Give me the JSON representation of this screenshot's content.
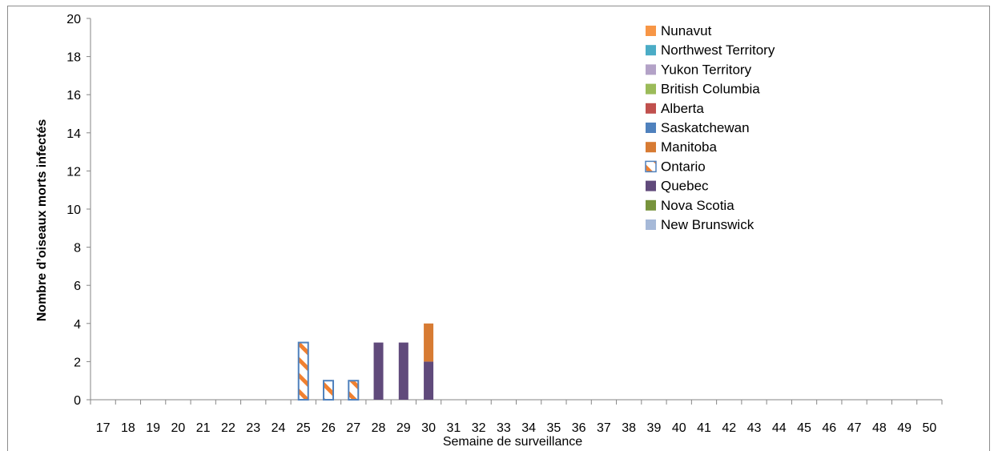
{
  "chart_data": {
    "type": "bar",
    "stacked": true,
    "title": "",
    "xlabel": "Semaine de surveillance",
    "ylabel": "Nombre d’oiseaux morts infectés",
    "ylim": [
      0,
      20
    ],
    "yticks": [
      0,
      2,
      4,
      6,
      8,
      10,
      12,
      14,
      16,
      18,
      20
    ],
    "grid": false,
    "legend_position": "top-right",
    "categories": [
      "17",
      "18",
      "19",
      "20",
      "21",
      "22",
      "23",
      "24",
      "25",
      "26",
      "27",
      "28",
      "29",
      "30",
      "31",
      "32",
      "33",
      "34",
      "35",
      "36",
      "37",
      "38",
      "39",
      "40",
      "41",
      "42",
      "43",
      "44",
      "45",
      "46",
      "47",
      "48",
      "49",
      "50"
    ],
    "series": [
      {
        "name": "Nunavut",
        "color": "#F79646",
        "pattern": "solid",
        "values": {}
      },
      {
        "name": "Northwest Territory",
        "color": "#4BACC6",
        "pattern": "solid",
        "values": {}
      },
      {
        "name": "Yukon Territory",
        "color": "#B3A2C7",
        "pattern": "solid",
        "values": {}
      },
      {
        "name": "British Columbia",
        "color": "#9BBB59",
        "pattern": "solid",
        "values": {}
      },
      {
        "name": "Alberta",
        "color": "#C0504D",
        "pattern": "solid",
        "values": {}
      },
      {
        "name": "Saskatchewan",
        "color": "#4F81BD",
        "pattern": "solid",
        "values": {}
      },
      {
        "name": "Manitoba",
        "color": "#D77B33",
        "pattern": "solid",
        "values": {
          "30": 2
        }
      },
      {
        "name": "Ontario",
        "color": "#F08030",
        "border": "#4F81BD",
        "pattern": "hatch",
        "values": {
          "25": 3,
          "26": 1,
          "27": 1
        }
      },
      {
        "name": "Quebec",
        "color": "#604A7B",
        "pattern": "solid",
        "values": {
          "28": 3,
          "29": 3,
          "30": 2
        }
      },
      {
        "name": "Nova Scotia",
        "color": "#77933C",
        "pattern": "solid",
        "values": {}
      },
      {
        "name": "New Brunswick",
        "color": "#A6B9D8",
        "pattern": "solid",
        "values": {}
      }
    ],
    "stack_order_bottom_to_top": [
      "Quebec",
      "Ontario",
      "Manitoba"
    ]
  }
}
